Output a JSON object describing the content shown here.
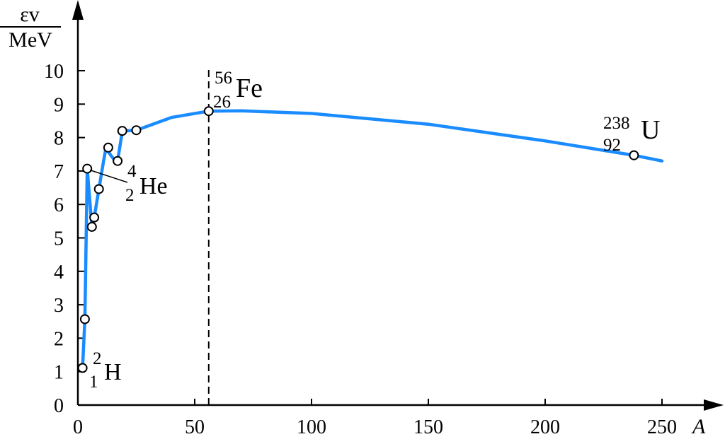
{
  "chart_data": {
    "type": "line",
    "xlabel": "A",
    "ylabel_numerator": "εv",
    "ylabel_denominator": "MeV",
    "xlim": [
      0,
      250
    ],
    "ylim": [
      0,
      10
    ],
    "x_ticks": [
      "0",
      "50",
      "100",
      "150",
      "200",
      "250"
    ],
    "y_ticks": [
      "0",
      "1",
      "2",
      "3",
      "4",
      "5",
      "6",
      "7",
      "8",
      "9",
      "10"
    ],
    "grid": false,
    "series": [
      {
        "color": "#1a8cff",
        "x": [
          2,
          3,
          4,
          6,
          7,
          9,
          11,
          12,
          14,
          16,
          17,
          19,
          20,
          25,
          40,
          56,
          70,
          100,
          150,
          200,
          238,
          250
        ],
        "y": [
          1.11,
          2.57,
          7.07,
          5.33,
          5.61,
          6.46,
          7.3,
          7.68,
          7.48,
          7.3,
          7.3,
          8.18,
          8.2,
          8.22,
          8.6,
          8.79,
          8.8,
          8.72,
          8.4,
          7.9,
          7.47,
          7.3
        ]
      }
    ],
    "points": [
      {
        "x": 2,
        "y": 1.11
      },
      {
        "x": 3,
        "y": 2.57
      },
      {
        "x": 4,
        "y": 7.07
      },
      {
        "x": 6,
        "y": 5.33
      },
      {
        "x": 7,
        "y": 5.61
      },
      {
        "x": 9,
        "y": 6.46
      },
      {
        "x": 13,
        "y": 7.7
      },
      {
        "x": 17,
        "y": 7.3
      },
      {
        "x": 19,
        "y": 8.2
      },
      {
        "x": 25,
        "y": 8.22
      },
      {
        "x": 56,
        "y": 8.79
      },
      {
        "x": 238,
        "y": 7.47
      }
    ],
    "annotations": [
      {
        "mass": "2",
        "charge": "1",
        "symbol": "H",
        "x": 2,
        "y": 1.11
      },
      {
        "mass": "4",
        "charge": "2",
        "symbol": "He",
        "x": 4,
        "y": 7.07
      },
      {
        "mass": "56",
        "charge": "26",
        "symbol": "Fe",
        "x": 56,
        "y": 8.79
      },
      {
        "mass": "238",
        "charge": "92",
        "symbol": "U",
        "x": 238,
        "y": 7.47
      }
    ],
    "reference_line": {
      "x": 56
    }
  }
}
